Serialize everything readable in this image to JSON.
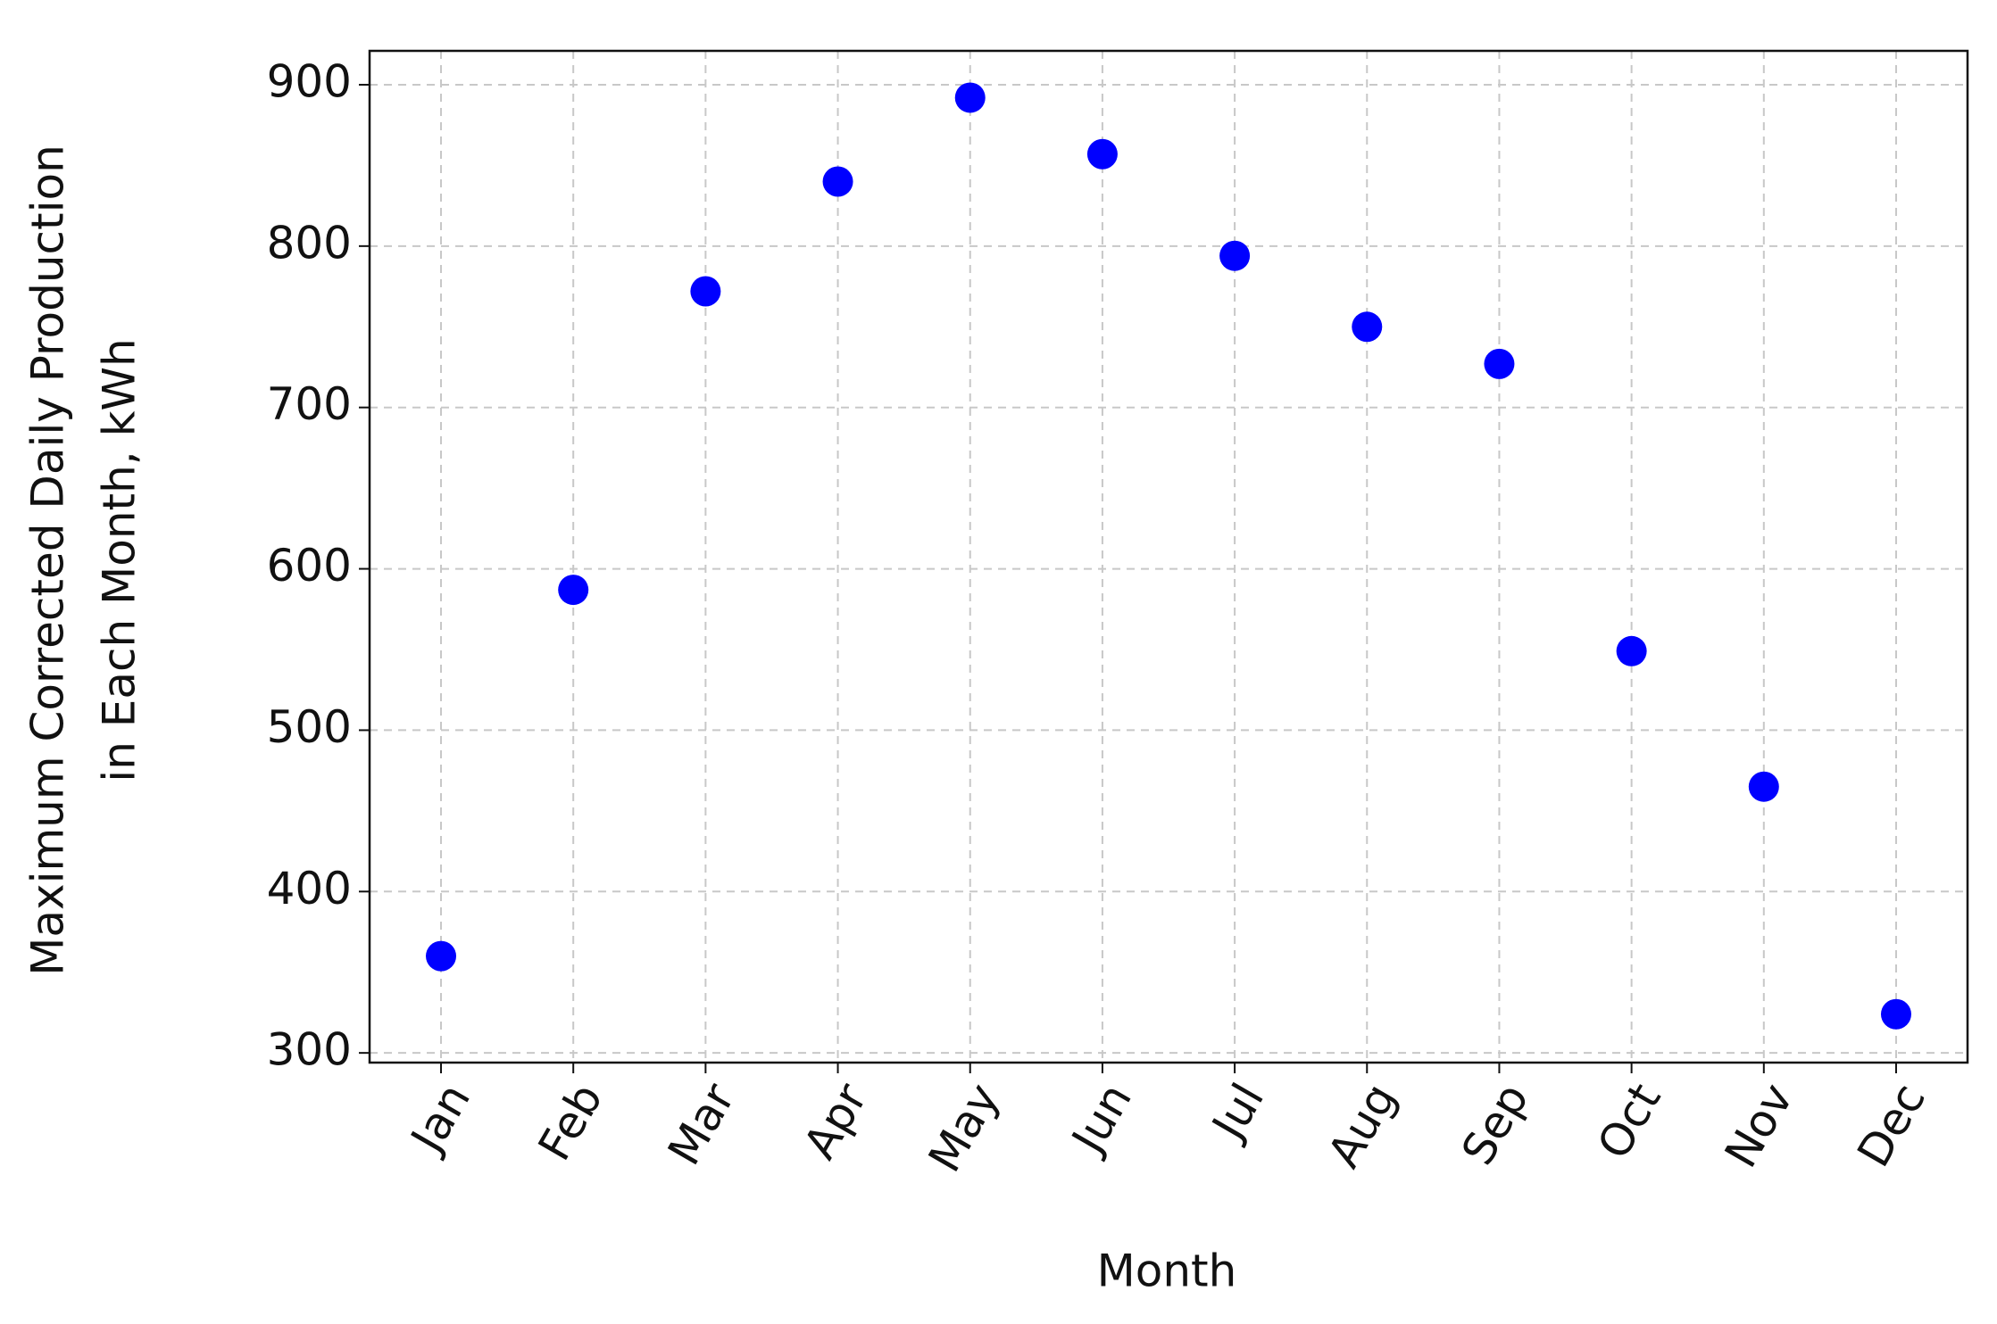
{
  "chart_data": {
    "type": "scatter",
    "x_label": "Month",
    "y_label": [
      "Maximum Corrected Daily Production",
      "in Each Month, kWh"
    ],
    "categories": [
      "Jan",
      "Feb",
      "Mar",
      "Apr",
      "May",
      "Jun",
      "Jul",
      "Aug",
      "Sep",
      "Oct",
      "Nov",
      "Dec"
    ],
    "values": [
      360,
      587,
      772,
      840,
      892,
      857,
      794,
      750,
      727,
      549,
      465,
      324
    ],
    "color": "#0000ff",
    "ylim": [
      294,
      921
    ],
    "yticks": [
      300,
      400,
      500,
      600,
      700,
      800,
      900
    ],
    "grid": true
  }
}
